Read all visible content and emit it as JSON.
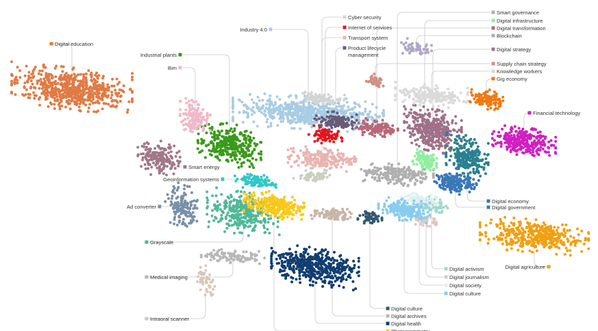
{
  "chart_data": {
    "type": "scatter",
    "title": "",
    "clusters": [
      {
        "label": "Digital education",
        "color": "#e07b45"
      },
      {
        "label": "Industrial plants",
        "color": "#3a9a1a"
      },
      {
        "label": "Bim",
        "color": "#f0b8c8"
      },
      {
        "label": "Industry 4.0",
        "color": "#a8cce4"
      },
      {
        "label": "Cyber security",
        "color": "#d4d4d4"
      },
      {
        "label": "Internet of services",
        "color": "#e8141c"
      },
      {
        "label": "Transport system",
        "color": "#e8b4b0"
      },
      {
        "label": "Product lifecycle management",
        "color": "#6a5a78"
      },
      {
        "label": "Smart governance",
        "color": "#b0b0b0"
      },
      {
        "label": "Digital infrastructure",
        "color": "#90eea0"
      },
      {
        "label": "Digital transformation",
        "color": "#b86878"
      },
      {
        "label": "Blockchain",
        "color": "#b0a8c8"
      },
      {
        "label": "Digital strategy",
        "color": "#a07088"
      },
      {
        "label": "Supply chain strategy",
        "color": "#d09080"
      },
      {
        "label": "Knowledge workers",
        "color": "#dadada"
      },
      {
        "label": "Gig economy",
        "color": "#f07810"
      },
      {
        "label": "Financial technology",
        "color": "#d020c0"
      },
      {
        "label": "Smart energy",
        "color": "#a07888"
      },
      {
        "label": "Geoinformation systems",
        "color": "#30c8c8"
      },
      {
        "label": "Ad converter",
        "color": "#7890a8"
      },
      {
        "label": "Grayscale",
        "color": "#50b898"
      },
      {
        "label": "Medical imaging",
        "color": "#b8b8b8"
      },
      {
        "label": "Intraoral scanner",
        "color": "#d8c8b8"
      },
      {
        "label": "Digital economy",
        "color": "#2a8090"
      },
      {
        "label": "Digital government",
        "color": "#3a78b8"
      },
      {
        "label": "Digital agriculture",
        "color": "#f0a010"
      },
      {
        "label": "Digital activism",
        "color": "#a0d8c8"
      },
      {
        "label": "Digital journalism",
        "color": "#e0c8c0"
      },
      {
        "label": "Digital society",
        "color": "#e0f0f0"
      },
      {
        "label": "Digital culture",
        "color": "#88ccf0"
      },
      {
        "label": "Digital culture",
        "color": "#305870"
      },
      {
        "label": "Digital archives",
        "color": "#c8b4a8"
      },
      {
        "label": "Digital health",
        "color": "#103e70"
      },
      {
        "label": "Photogrammetry",
        "color": "#f8c818"
      }
    ]
  }
}
